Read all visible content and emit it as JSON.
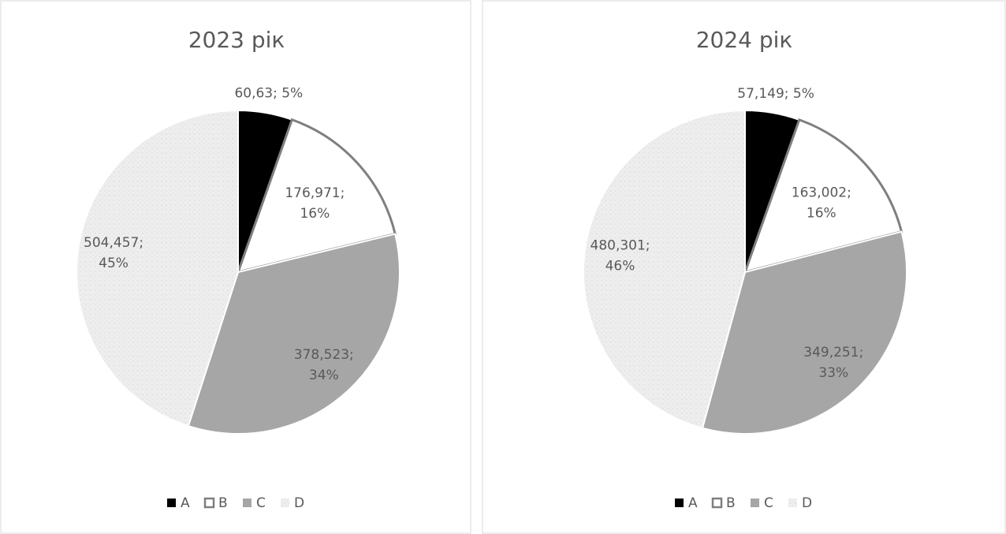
{
  "chart_data": [
    {
      "type": "pie",
      "title": "2023 рік",
      "categories": [
        "A",
        "B",
        "C",
        "D"
      ],
      "values": [
        60.63,
        176.971,
        378.523,
        504.457
      ],
      "value_labels": [
        "60,63; 5%",
        "176,971; 16%",
        "378,523; 34%",
        "504,457; 45%"
      ],
      "colors": [
        "#000000",
        "#ffffff",
        "#a6a6a6",
        "#eeeeee"
      ],
      "legend": "bottom"
    },
    {
      "type": "pie",
      "title": "2024 рік",
      "categories": [
        "A",
        "B",
        "C",
        "D"
      ],
      "values": [
        57.149,
        163.002,
        349.251,
        480.301
      ],
      "value_labels": [
        "57,149; 5%",
        "163,002; 16%",
        "349,251; 33%",
        "480,301; 46%"
      ],
      "colors": [
        "#000000",
        "#ffffff",
        "#a6a6a6",
        "#eeeeee"
      ],
      "legend": "bottom"
    }
  ]
}
